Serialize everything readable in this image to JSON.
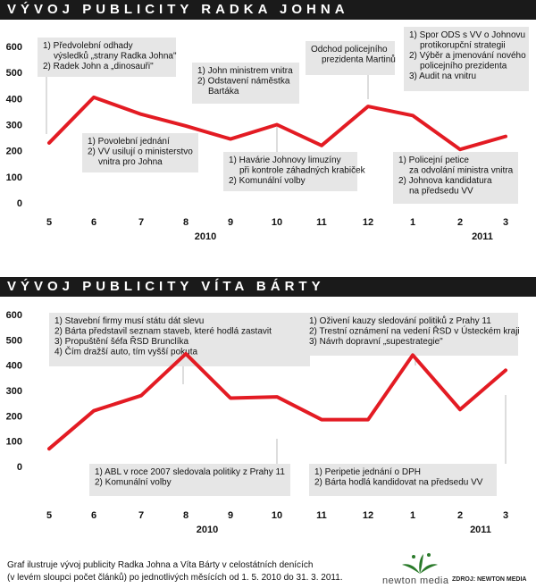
{
  "chart_data": [
    {
      "type": "line",
      "title": "VÝVOJ PUBLICITY RADKA JOHNA",
      "categories": [
        "5",
        "6",
        "7",
        "8",
        "9",
        "10",
        "11",
        "12",
        "1",
        "2",
        "3"
      ],
      "years": [
        {
          "label": "2010"
        },
        {
          "label": "2011"
        }
      ],
      "values": [
        230,
        405,
        340,
        295,
        245,
        300,
        220,
        370,
        335,
        205,
        255
      ],
      "ylim": [
        0,
        600
      ],
      "yticks": [
        0,
        100,
        200,
        300,
        400,
        500,
        600
      ],
      "color": "#e31b23",
      "annotations": [
        {
          "lines": [
            "1) Předvolební odhady",
            "výsledků „strany Radka Johna\"",
            "2) Radek John a „dinosauři\""
          ]
        },
        {
          "lines": [
            "1) Povolební jednání",
            "2) VV usilují o ministerstvo",
            "vnitra pro Johna"
          ]
        },
        {
          "lines": [
            "1) John ministrem vnitra",
            "2) Odstavení náměstka",
            "Bartáka"
          ]
        },
        {
          "lines": [
            "1) Havárie Johnovy limuzíny",
            "při kontrole záhadných krabiček",
            "2) Komunální volby"
          ]
        },
        {
          "lines": [
            "Odchod policejního",
            "prezidenta Martinů"
          ]
        },
        {
          "lines": [
            "1) Spor ODS s VV o Johnovu",
            "protikorupční strategii",
            "2) Výběr a jmenování nového",
            "policejního prezidenta",
            "3) Audit na vnitru"
          ]
        },
        {
          "lines": [
            "1) Policejní petice",
            "za odvolání ministra vnitra",
            "2) Johnova kandidatura",
            "na předsedu VV"
          ]
        }
      ]
    },
    {
      "type": "line",
      "title": "VÝVOJ PUBLICITY VÍTA BÁRTY",
      "categories": [
        "5",
        "6",
        "7",
        "8",
        "9",
        "10",
        "11",
        "12",
        "1",
        "2",
        "3"
      ],
      "years": [
        {
          "label": "2010"
        },
        {
          "label": "2011"
        }
      ],
      "values": [
        70,
        220,
        280,
        445,
        270,
        275,
        185,
        185,
        440,
        225,
        380
      ],
      "ylim": [
        0,
        600
      ],
      "yticks": [
        0,
        100,
        200,
        300,
        400,
        500,
        600
      ],
      "color": "#e31b23",
      "annotations": [
        {
          "lines": [
            "1) Stavební firmy musí státu dát slevu",
            "2) Bárta představil seznam staveb, které hodlá zastavit",
            "3) Propuštění šéfa ŘSD Brunclíka",
            "4) Čím dražší auto, tím vyšší pokuta"
          ]
        },
        {
          "lines": [
            "1) ABL v roce 2007 sledovala politiky z Prahy 11",
            "2) Komunální volby"
          ]
        },
        {
          "lines": [
            "1) Oživení kauzy sledování politiků z Prahy 11",
            "2) Trestní oznámení na vedení ŘSD v Ústeckém kraji",
            "3) Návrh dopravní „supestrategie\""
          ]
        },
        {
          "lines": [
            "1) Peripetie jednání o DPH",
            "2) Bárta hodlá kandidovat na předsedu VV"
          ]
        }
      ]
    }
  ],
  "footer": {
    "line1": "Graf ilustruje vývoj publicity Radka Johna a Víta Bárty v celostátních denících",
    "line2": "(v levém sloupci počet článků) po jednotlivých měsících od 1. 5. 2010 do 31. 3. 2011."
  },
  "logo": {
    "text": "newton media"
  },
  "source": "ZDROJ: NEWTON MEDIA"
}
